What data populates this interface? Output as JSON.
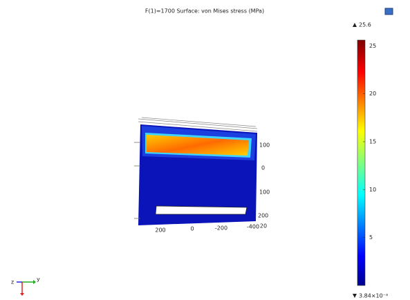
{
  "header": {
    "title": "F(1)=1700   Surface: von Mises stress (MPa)"
  },
  "colorbar": {
    "max": 25.6,
    "min": {
      "value": 0.00384,
      "label": "3.84×10⁻³"
    },
    "ticks": [
      25,
      20,
      15,
      10,
      5
    ]
  },
  "plot": {
    "right_labels": [
      "100",
      "0",
      "100",
      "200"
    ],
    "bottom_labels": [
      "200",
      "0",
      "-200",
      "-400",
      "20"
    ]
  },
  "triad": {
    "z": "z",
    "y": "y"
  }
}
